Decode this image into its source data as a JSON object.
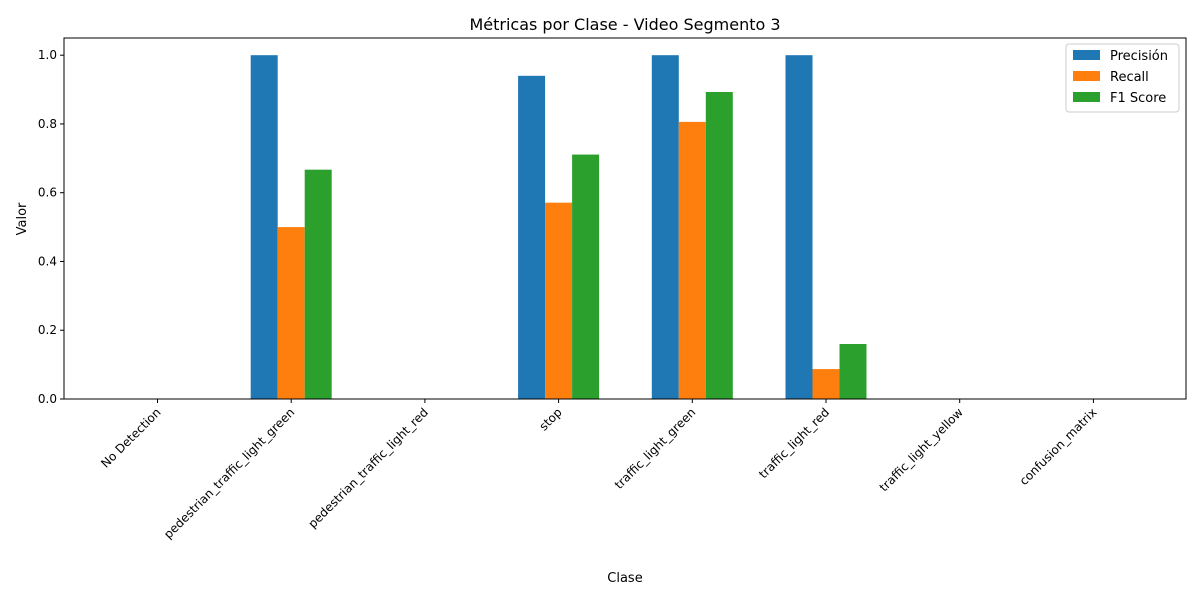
{
  "chart_data": {
    "type": "bar",
    "title": "Métricas por Clase - Video Segmento 3",
    "xlabel": "Clase",
    "ylabel": "Valor",
    "ylim": [
      0,
      1.05
    ],
    "yticks": [
      "0.0",
      "0.2",
      "0.4",
      "0.6",
      "0.8",
      "1.0"
    ],
    "categories": [
      "No Detection",
      "pedestrian_traffic_light_green",
      "pedestrian_traffic_light_red",
      "stop",
      "traffic_light_green",
      "traffic_light_red",
      "traffic_light_yellow",
      "confusion_matrix"
    ],
    "series": [
      {
        "name": "Precisión",
        "color": "#1f77b4",
        "values": [
          0,
          1.0,
          0,
          0.94,
          1.0,
          1.0,
          0,
          0
        ]
      },
      {
        "name": "Recall",
        "color": "#ff7f0e",
        "values": [
          0,
          0.5,
          0,
          0.571,
          0.806,
          0.087,
          0,
          0
        ]
      },
      {
        "name": "F1 Score",
        "color": "#2ca02c",
        "values": [
          0,
          0.667,
          0,
          0.711,
          0.893,
          0.16,
          0,
          0
        ]
      }
    ],
    "legend": "top-right",
    "grid": false
  }
}
